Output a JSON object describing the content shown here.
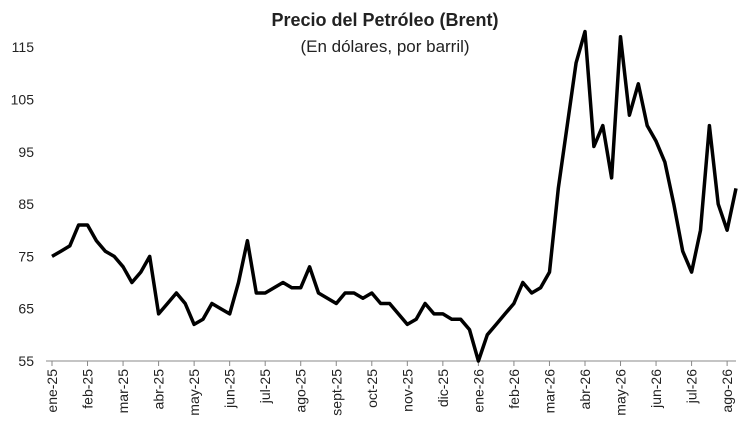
{
  "chart_data": {
    "type": "line",
    "title": "Precio del Petróleo (Brent)",
    "subtitle": "(En dólares, por barril)",
    "categories": [
      "ene-25",
      null,
      null,
      null,
      "feb-25",
      null,
      null,
      null,
      "mar-25",
      null,
      null,
      null,
      "abr-25",
      null,
      null,
      null,
      "may-25",
      null,
      null,
      null,
      "jun-25",
      null,
      null,
      null,
      "jul-25",
      null,
      null,
      null,
      "ago-25",
      null,
      null,
      null,
      "sept-25",
      null,
      null,
      null,
      "oct-25",
      null,
      null,
      null,
      "nov-25",
      null,
      null,
      null,
      "dic-25",
      null,
      null,
      null,
      "ene-26",
      null,
      null,
      null,
      "feb-26",
      null,
      null,
      null,
      "mar-26",
      null,
      null,
      null,
      "abr-26",
      null,
      null,
      null,
      "may-26",
      null,
      null,
      null,
      "jun-26",
      null,
      null,
      null,
      "jul-26",
      null,
      null,
      null,
      "ago-26",
      null
    ],
    "values": [
      75,
      76,
      77,
      81,
      81,
      78,
      76,
      75,
      73,
      70,
      72,
      75,
      64,
      66,
      68,
      66,
      62,
      63,
      66,
      65,
      64,
      70,
      78,
      68,
      68,
      69,
      70,
      69,
      69,
      73,
      68,
      67,
      66,
      68,
      68,
      67,
      68,
      66,
      66,
      64,
      62,
      63,
      66,
      64,
      64,
      63,
      63,
      61,
      55,
      60,
      62,
      64,
      66,
      70,
      68,
      69,
      72,
      88,
      100,
      112,
      118,
      96,
      100,
      90,
      117,
      102,
      108,
      100,
      97,
      93,
      85,
      76,
      72,
      80,
      100,
      85,
      80,
      88
    ],
    "color": "#000000",
    "ylim": [
      55,
      120
    ],
    "yticks": [
      55,
      65,
      75,
      85,
      95,
      105,
      115
    ],
    "grid": false
  }
}
